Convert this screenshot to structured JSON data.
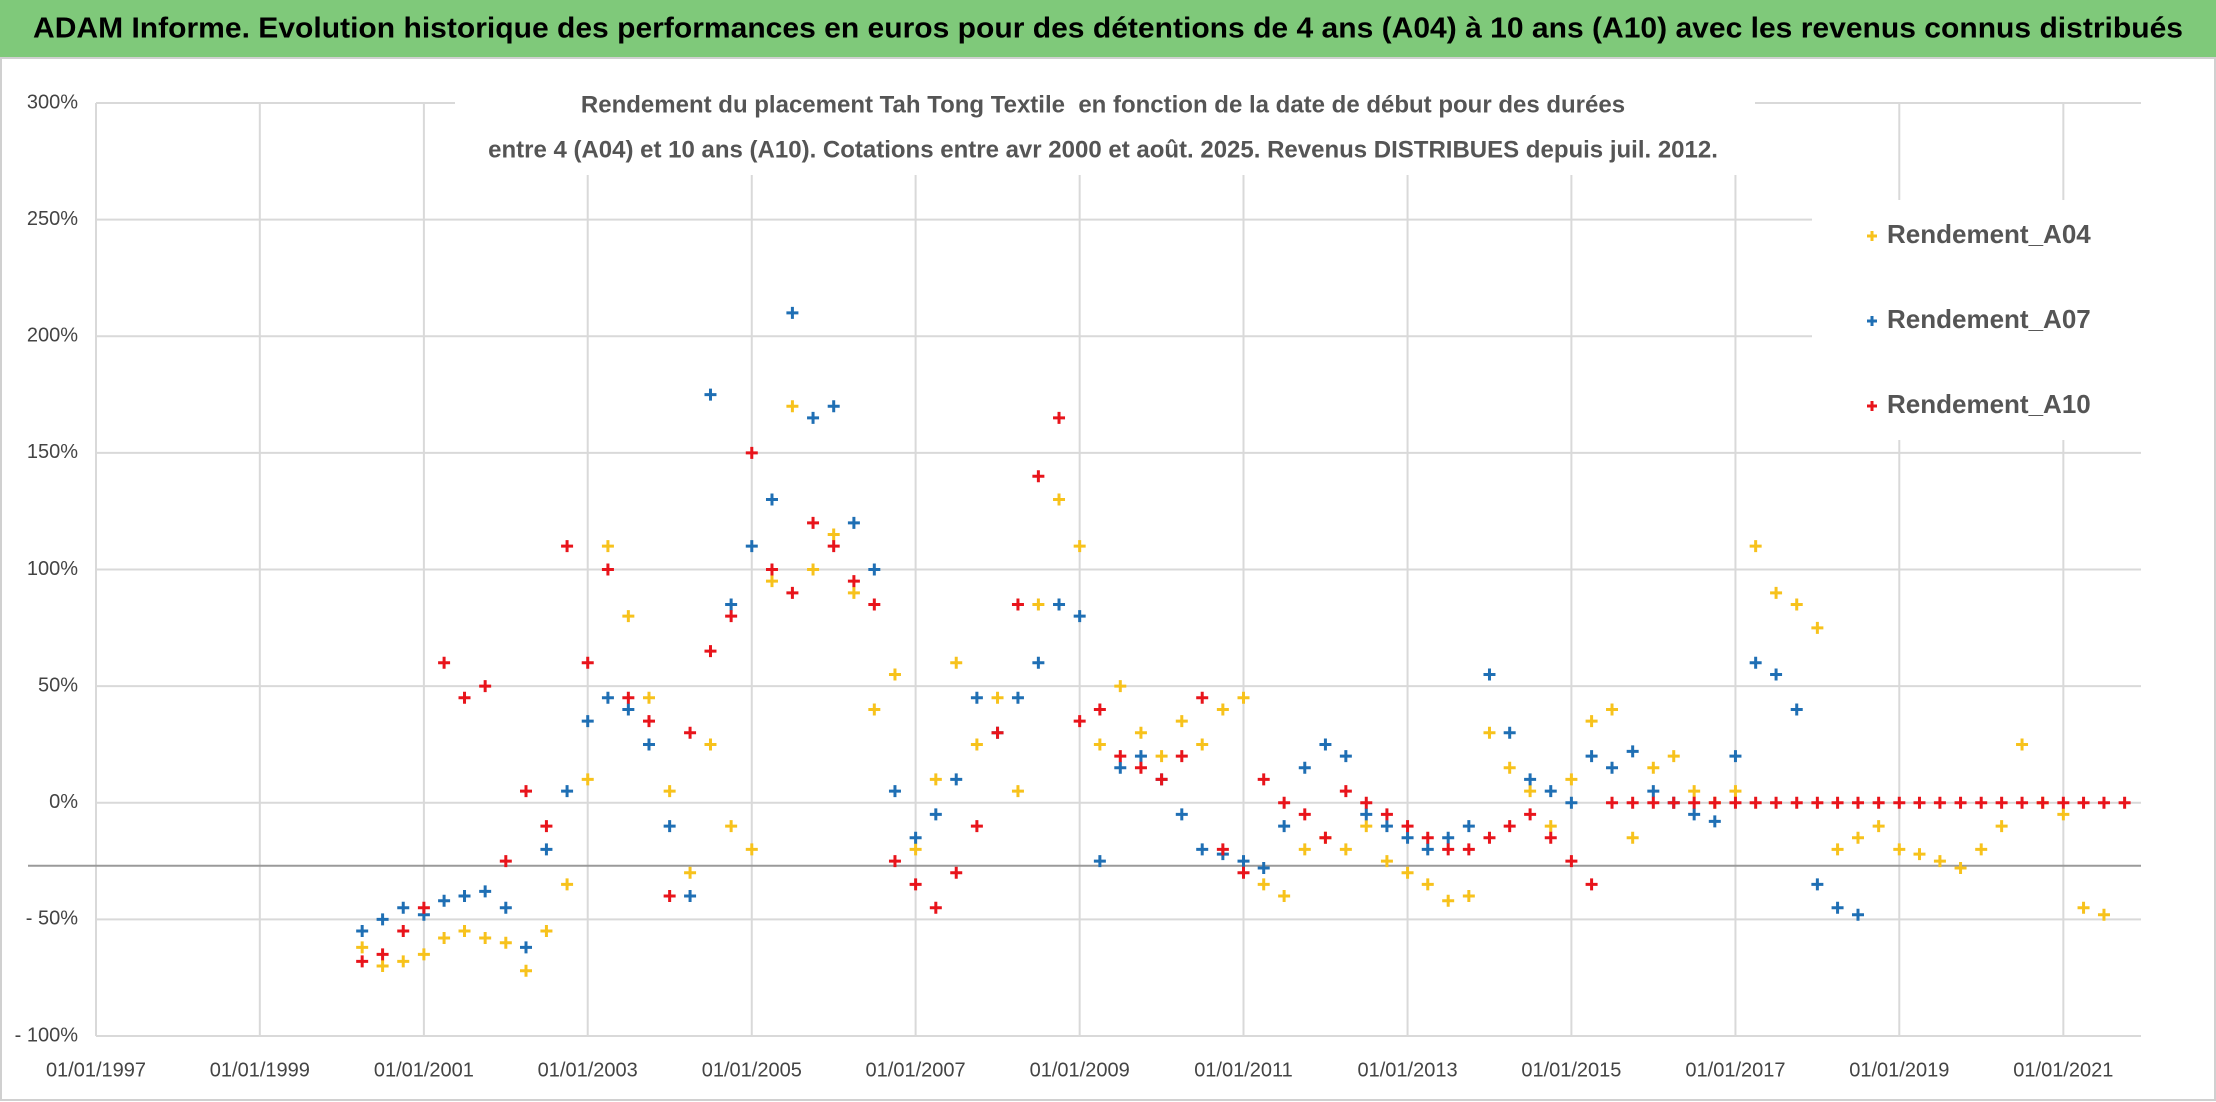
{
  "header": "ADAM Informe. Evolution historique des performances en euros pour des détentions de 4 ans (A04) à 10 ans (A10) avec les revenus connus distribués",
  "chart_data": {
    "type": "scatter",
    "title_lines": [
      "Rendement du placement Tah Tong Textile  en fonction de la date de début pour des durées",
      "entre 4 (A04) et 10 ans (A10). Cotations entre avr 2000 et août. 2025. Revenus DISTRIBUES depuis juil. 2012."
    ],
    "x": [
      "2000-04-01",
      "2000-07-01",
      "2000-10-01",
      "2001-01-01",
      "2001-04-01",
      "2001-07-01",
      "2001-10-01",
      "2002-01-01",
      "2002-04-01",
      "2002-07-01",
      "2002-10-01",
      "2003-01-01",
      "2003-04-01",
      "2003-07-01",
      "2003-10-01",
      "2004-01-01",
      "2004-04-01",
      "2004-07-01",
      "2004-10-01",
      "2005-01-01",
      "2005-04-01",
      "2005-07-01",
      "2005-10-01",
      "2006-01-01",
      "2006-04-01",
      "2006-07-01",
      "2006-10-01",
      "2007-01-01",
      "2007-04-01",
      "2007-07-01",
      "2007-10-01",
      "2008-01-01",
      "2008-04-01",
      "2008-07-01",
      "2008-10-01",
      "2009-01-01",
      "2009-04-01",
      "2009-07-01",
      "2009-10-01",
      "2010-01-01",
      "2010-04-01",
      "2010-07-01",
      "2010-10-01",
      "2011-01-01",
      "2011-04-01",
      "2011-07-01",
      "2011-10-01",
      "2012-01-01",
      "2012-04-01",
      "2012-07-01",
      "2012-10-01",
      "2013-01-01",
      "2013-04-01",
      "2013-07-01",
      "2013-10-01",
      "2014-01-01",
      "2014-04-01",
      "2014-07-01",
      "2014-10-01",
      "2015-01-01",
      "2015-04-01",
      "2015-07-01",
      "2015-10-01",
      "2016-01-01",
      "2016-04-01",
      "2016-07-01",
      "2016-10-01",
      "2017-01-01",
      "2017-04-01",
      "2017-07-01",
      "2017-10-01",
      "2018-01-01",
      "2018-04-01",
      "2018-07-01",
      "2018-10-01",
      "2019-01-01",
      "2019-04-01",
      "2019-07-01",
      "2019-10-01",
      "2020-01-01",
      "2020-04-01",
      "2020-07-01",
      "2020-10-01",
      "2021-01-01",
      "2021-04-01",
      "2021-07-01",
      "2021-10-01"
    ],
    "series": [
      {
        "name": "Rendement_A04",
        "color": "#f7c21c",
        "values": [
          -62,
          -70,
          -68,
          -65,
          -58,
          -55,
          -58,
          -60,
          -72,
          -55,
          -35,
          10,
          110,
          80,
          45,
          5,
          -30,
          25,
          -10,
          -20,
          95,
          170,
          100,
          115,
          90,
          40,
          55,
          -20,
          10,
          60,
          25,
          45,
          5,
          85,
          130,
          110,
          25,
          50,
          30,
          20,
          35,
          25,
          40,
          45,
          -35,
          -40,
          -20,
          -15,
          -20,
          -10,
          -25,
          -30,
          -35,
          -42,
          -40,
          30,
          15,
          5,
          -10,
          10,
          35,
          40,
          -15,
          15,
          20,
          5,
          0,
          5,
          110,
          90,
          85,
          75,
          -20,
          -15,
          -10,
          -20,
          -22,
          -25,
          -28,
          -20,
          -10,
          25,
          0,
          -5,
          -45,
          -48,
          null
        ]
      },
      {
        "name": "Rendement_A07",
        "color": "#1f6fb4",
        "values": [
          -55,
          -50,
          -45,
          -48,
          -42,
          -40,
          -38,
          -45,
          -62,
          -20,
          5,
          35,
          45,
          40,
          25,
          -10,
          -40,
          175,
          85,
          110,
          130,
          210,
          165,
          170,
          120,
          100,
          5,
          -15,
          -5,
          10,
          45,
          30,
          45,
          60,
          85,
          80,
          -25,
          15,
          20,
          10,
          -5,
          -20,
          -22,
          -25,
          -28,
          -10,
          15,
          25,
          20,
          -5,
          -10,
          -15,
          -20,
          -15,
          -10,
          55,
          30,
          10,
          5,
          0,
          20,
          15,
          22,
          5,
          0,
          -5,
          -8,
          20,
          60,
          55,
          40,
          -35,
          -45,
          -48,
          null,
          null,
          null,
          null,
          null,
          null,
          null,
          null,
          null,
          null,
          null,
          null,
          null
        ]
      },
      {
        "name": "Rendement_A10",
        "color": "#e8141b",
        "values": [
          -68,
          -65,
          -55,
          -45,
          60,
          45,
          50,
          -25,
          5,
          -10,
          110,
          60,
          100,
          45,
          35,
          -40,
          30,
          65,
          80,
          150,
          100,
          90,
          120,
          110,
          95,
          85,
          -25,
          -35,
          -45,
          -30,
          -10,
          30,
          85,
          140,
          165,
          35,
          40,
          20,
          15,
          10,
          20,
          45,
          -20,
          -30,
          10,
          0,
          -5,
          -15,
          5,
          0,
          -5,
          -10,
          -15,
          -20,
          -20,
          -15,
          -10,
          -5,
          -15,
          -25,
          -35,
          0,
          0,
          0,
          0,
          0,
          0,
          0,
          0,
          0,
          0,
          0,
          0,
          0,
          0,
          0,
          0,
          0,
          0,
          0,
          0,
          0,
          0,
          0,
          0,
          0,
          0
        ]
      }
    ],
    "xlim": [
      "1997-01-01",
      "2021-12-13"
    ],
    "xticks": [
      {
        "value": "1997-01-01",
        "label": "01/01/1997"
      },
      {
        "value": "1999-01-01",
        "label": "01/01/1999"
      },
      {
        "value": "2001-01-01",
        "label": "01/01/2001"
      },
      {
        "value": "2003-01-01",
        "label": "01/01/2003"
      },
      {
        "value": "2005-01-01",
        "label": "01/01/2005"
      },
      {
        "value": "2007-01-01",
        "label": "01/01/2007"
      },
      {
        "value": "2009-01-01",
        "label": "01/01/2009"
      },
      {
        "value": "2011-01-01",
        "label": "01/01/2011"
      },
      {
        "value": "2013-01-01",
        "label": "01/01/2013"
      },
      {
        "value": "2015-01-01",
        "label": "01/01/2015"
      },
      {
        "value": "2017-01-01",
        "label": "01/01/2017"
      },
      {
        "value": "2019-01-01",
        "label": "01/01/2019"
      },
      {
        "value": "2021-01-01",
        "label": "01/01/2021"
      }
    ],
    "ylim": [
      -100,
      300
    ],
    "yticks": [
      {
        "value": -100,
        "label": "- 100%"
      },
      {
        "value": -50,
        "label": "- 50%"
      },
      {
        "value": 0,
        "label": "0%"
      },
      {
        "value": 50,
        "label": "50%"
      },
      {
        "value": 100,
        "label": "100%"
      },
      {
        "value": 150,
        "label": "150%"
      },
      {
        "value": 200,
        "label": "200%"
      },
      {
        "value": 250,
        "label": "250%"
      },
      {
        "value": 300,
        "label": "300%"
      }
    ],
    "reference_line": -27,
    "grid": true,
    "legend": "top-right"
  }
}
